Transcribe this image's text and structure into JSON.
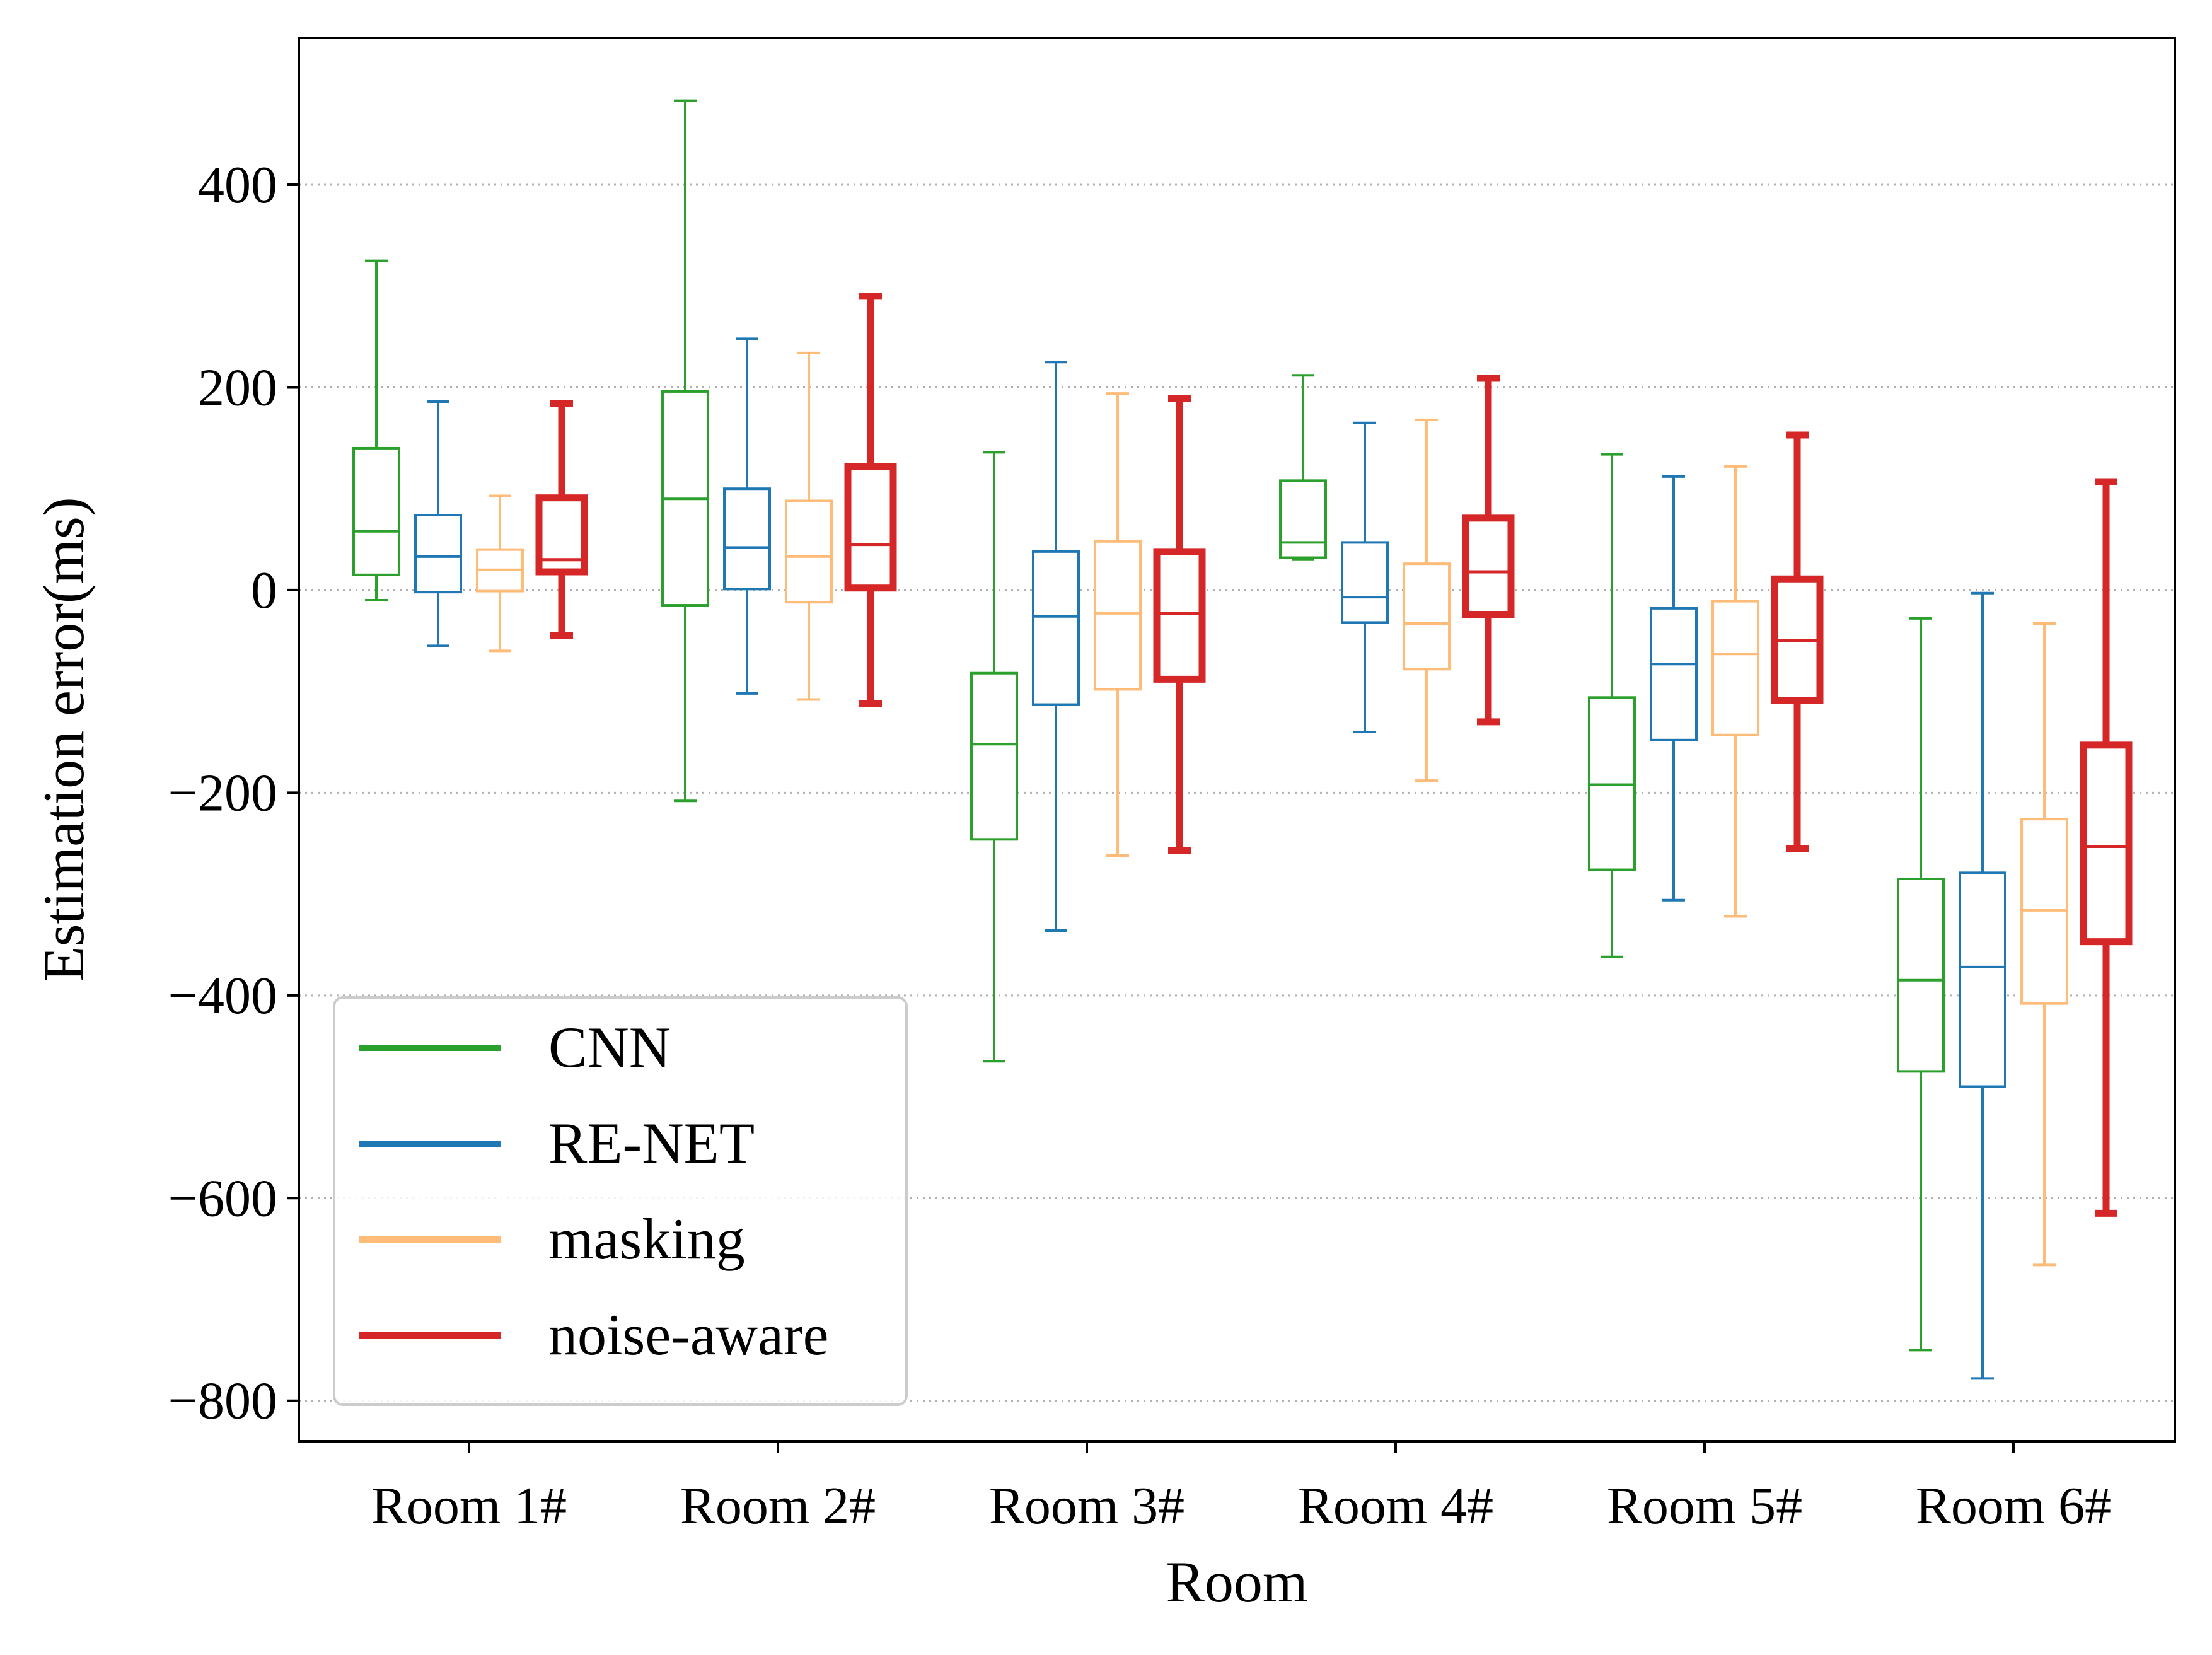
{
  "chart_data": {
    "type": "box",
    "title": "",
    "xlabel": "Room",
    "ylabel": "Estimation error(ms)",
    "ylim": [
      -840,
      545
    ],
    "yticks": [
      400,
      200,
      0,
      -200,
      -400,
      -600,
      -800
    ],
    "ytick_labels": [
      "400",
      "200",
      "0",
      "−200",
      "−400",
      "−600",
      "−800"
    ],
    "grid": "horizontal-dotted",
    "legend_position": "lower-left",
    "categories": [
      "Room 1#",
      "Room 2#",
      "Room 3#",
      "Room 4#",
      "Room 5#",
      "Room 6#"
    ],
    "series": [
      {
        "name": "CNN",
        "color": "#2ca02c",
        "stats": [
          {
            "whislo": -10,
            "q1": 15,
            "med": 58,
            "q3": 140,
            "whishi": 325
          },
          {
            "whislo": -208,
            "q1": -15,
            "med": 90,
            "q3": 196,
            "whishi": 483
          },
          {
            "whislo": -465,
            "q1": -246,
            "med": -152,
            "q3": -82,
            "whishi": 136
          },
          {
            "whislo": 30,
            "q1": 32,
            "med": 47,
            "q3": 108,
            "whishi": 212
          },
          {
            "whislo": -362,
            "q1": -276,
            "med": -192,
            "q3": -106,
            "whishi": 134
          },
          {
            "whislo": -750,
            "q1": -475,
            "med": -385,
            "q3": -285,
            "whishi": -28
          }
        ]
      },
      {
        "name": "RE-NET",
        "color": "#1f77b4",
        "stats": [
          {
            "whislo": -55,
            "q1": -2,
            "med": 33,
            "q3": 74,
            "whishi": 186
          },
          {
            "whislo": -102,
            "q1": 1,
            "med": 42,
            "q3": 100,
            "whishi": 248
          },
          {
            "whislo": -336,
            "q1": -113,
            "med": -26,
            "q3": 38,
            "whishi": 225
          },
          {
            "whislo": -140,
            "q1": -32,
            "med": -7,
            "q3": 47,
            "whishi": 165
          },
          {
            "whislo": -306,
            "q1": -148,
            "med": -73,
            "q3": -18,
            "whishi": 112
          },
          {
            "whislo": -778,
            "q1": -490,
            "med": -372,
            "q3": -279,
            "whishi": -3
          }
        ]
      },
      {
        "name": "masking",
        "color": "#ffbb78",
        "stats": [
          {
            "whislo": -60,
            "q1": -1,
            "med": 20,
            "q3": 40,
            "whishi": 93
          },
          {
            "whislo": -108,
            "q1": -12,
            "med": 33,
            "q3": 88,
            "whishi": 234
          },
          {
            "whislo": -262,
            "q1": -98,
            "med": -23,
            "q3": 48,
            "whishi": 194
          },
          {
            "whislo": -188,
            "q1": -78,
            "med": -33,
            "q3": 26,
            "whishi": 168
          },
          {
            "whislo": -322,
            "q1": -143,
            "med": -63,
            "q3": -11,
            "whishi": 122
          },
          {
            "whislo": -666,
            "q1": -408,
            "med": -316,
            "q3": -226,
            "whishi": -33
          }
        ]
      },
      {
        "name": "noise-aware",
        "color": "#d62728",
        "stats": [
          {
            "whislo": -45,
            "q1": 18,
            "med": 30,
            "q3": 91,
            "whishi": 184
          },
          {
            "whislo": -112,
            "q1": 2,
            "med": 45,
            "q3": 122,
            "whishi": 290
          },
          {
            "whislo": -257,
            "q1": -88,
            "med": -23,
            "q3": 38,
            "whishi": 189
          },
          {
            "whislo": -130,
            "q1": -24,
            "med": 18,
            "q3": 71,
            "whishi": 209
          },
          {
            "whislo": -255,
            "q1": -109,
            "med": -50,
            "q3": 11,
            "whishi": 153
          },
          {
            "whislo": -615,
            "q1": -347,
            "med": -253,
            "q3": -153,
            "whishi": 107
          }
        ]
      }
    ]
  }
}
